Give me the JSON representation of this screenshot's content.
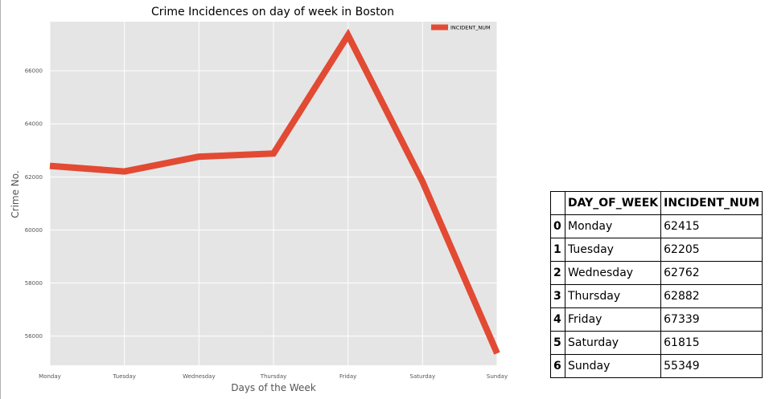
{
  "chart_data": {
    "type": "line",
    "title": "Crime Incidences on day of week in Boston",
    "xlabel": "Days of the Week",
    "ylabel": "Crime No.",
    "categories": [
      "Monday",
      "Tuesday",
      "Wednesday",
      "Thursday",
      "Friday",
      "Saturday",
      "Sunday"
    ],
    "series": [
      {
        "name": "INCIDENT_NUM",
        "values": [
          62415,
          62205,
          62762,
          62882,
          67339,
          61815,
          55349
        ],
        "color": "#e24a33"
      }
    ],
    "yticks": [
      56000,
      58000,
      60000,
      62000,
      64000,
      66000
    ],
    "ylim": [
      54900,
      67850
    ],
    "grid": true,
    "legend": "top-right",
    "background": "#e5e5e5"
  },
  "table": {
    "headers": [
      "",
      "DAY_OF_WEEK",
      "INCIDENT_NUM"
    ],
    "rows": [
      [
        "0",
        "Monday",
        "62415"
      ],
      [
        "1",
        "Tuesday",
        "62205"
      ],
      [
        "2",
        "Wednesday",
        "62762"
      ],
      [
        "3",
        "Thursday",
        "62882"
      ],
      [
        "4",
        "Friday",
        "67339"
      ],
      [
        "5",
        "Saturday",
        "61815"
      ],
      [
        "6",
        "Sunday",
        "55349"
      ]
    ]
  }
}
